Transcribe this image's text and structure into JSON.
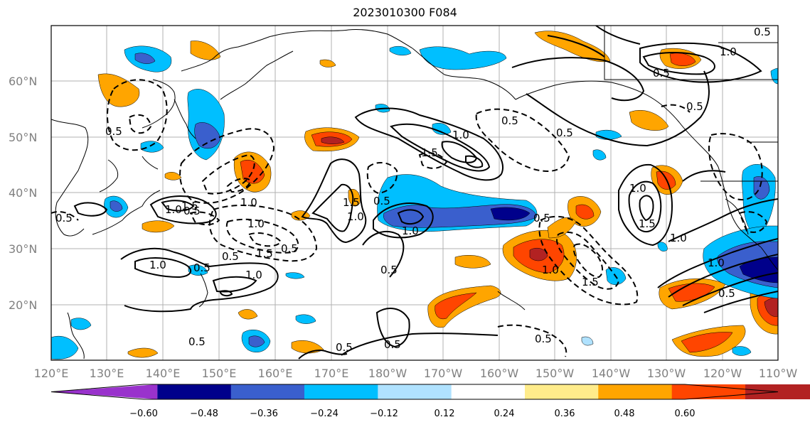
{
  "title": "2023010300 F084",
  "map": {
    "lat_labels": [
      "60°N",
      "50°N",
      "40°N",
      "30°N",
      "20°N"
    ],
    "lon_labels": [
      "120°E",
      "130°E",
      "140°E",
      "150°E",
      "160°E",
      "170°E",
      "180°W",
      "170°W",
      "160°W",
      "150°W",
      "140°W",
      "130°W",
      "120°W",
      "110°W"
    ],
    "contour_labels": [
      "0.5",
      "0.5",
      "0.5",
      "1.0",
      "1.0",
      "0.5",
      "0.5",
      "1.0",
      "1.5",
      "0.5",
      "1.0",
      "1.5",
      "1.0",
      "0.5",
      "0.5",
      "1.0",
      "1.5",
      "0.5",
      "1.5",
      "1.0",
      "0.5",
      "1.0",
      "0.5",
      "0.5",
      "1.0",
      "1.5",
      "0.5",
      "1.0",
      "1.5",
      "0.5",
      "1.0",
      "1.0",
      "0.5",
      "0.5",
      "1.0",
      "0.5",
      "0.5",
      "0.5"
    ]
  },
  "colorbar": {
    "ticks": [
      "−0.60",
      "−0.48",
      "−0.36",
      "−0.24",
      "−0.12",
      "0.12",
      "0.24",
      "0.36",
      "0.48",
      "0.60"
    ],
    "colors": [
      "#9932cc",
      "#00008b",
      "#3a5fcd",
      "#00bfff",
      "#b0e2ff",
      "#ffffff",
      "#ffec8b",
      "#ffa500",
      "#ff4500",
      "#b22222",
      "#ff88b0"
    ]
  }
}
